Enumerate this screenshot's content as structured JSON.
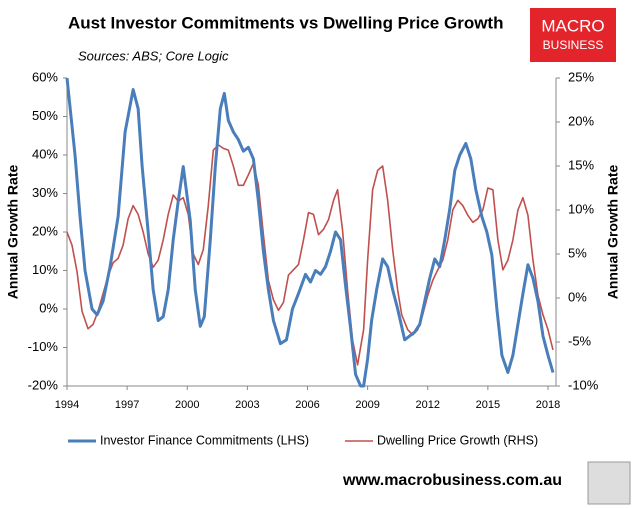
{
  "chart_data": {
    "type": "line",
    "title": "Aust Investor Commitments vs Dwelling Price Growth",
    "subtitle": "Sources: ABS; Core Logic",
    "ylabel": "Annual Growth Rate",
    "y2label": "Annual Growth Rate",
    "xlim": [
      1994,
      2018.4
    ],
    "xticks": [
      1994,
      1997,
      2000,
      2003,
      2006,
      2009,
      2012,
      2015,
      2018
    ],
    "ylim": [
      -20,
      60
    ],
    "yticks": [
      {
        "value": -20,
        "label": "-20%"
      },
      {
        "value": -10,
        "label": "-10%"
      },
      {
        "value": 0,
        "label": "0%"
      },
      {
        "value": 10,
        "label": "10%"
      },
      {
        "value": 20,
        "label": "20%"
      },
      {
        "value": 30,
        "label": "30%"
      },
      {
        "value": 40,
        "label": "40%"
      },
      {
        "value": 50,
        "label": "50%"
      },
      {
        "value": 60,
        "label": "60%"
      }
    ],
    "y2lim": [
      -10,
      25
    ],
    "y2ticks": [
      {
        "value": -10,
        "label": "-10%"
      },
      {
        "value": -5,
        "label": "-5%"
      },
      {
        "value": 0,
        "label": "0%"
      },
      {
        "value": 5,
        "label": "5%"
      },
      {
        "value": 10,
        "label": "10%"
      },
      {
        "value": 15,
        "label": "15%"
      },
      {
        "value": 20,
        "label": "20%"
      },
      {
        "value": 25,
        "label": "25%"
      }
    ],
    "grid": false,
    "legend": "bottom",
    "series": [
      {
        "name": "Investor Finance Commitments (LHS)",
        "color": "#4a7ebb",
        "axis": "y",
        "x": [
          1994.0,
          1994.4,
          1994.65,
          1994.9,
          1995.25,
          1995.5,
          1995.8,
          1996.15,
          1996.55,
          1996.9,
          1997.3,
          1997.55,
          1997.75,
          1998.05,
          1998.3,
          1998.55,
          1998.8,
          1999.05,
          1999.3,
          1999.55,
          1999.8,
          1999.95,
          2000.15,
          2000.4,
          2000.65,
          2000.85,
          2001.15,
          2001.4,
          2001.65,
          2001.85,
          2002.05,
          2002.3,
          2002.55,
          2002.8,
          2003.05,
          2003.3,
          2003.55,
          2003.8,
          2004.05,
          2004.3,
          2004.65,
          2004.95,
          2005.25,
          2005.55,
          2005.9,
          2006.15,
          2006.4,
          2006.65,
          2006.9,
          2007.15,
          2007.4,
          2007.65,
          2007.9,
          2008.15,
          2008.4,
          2008.65,
          2008.8,
          2009.0,
          2009.2,
          2009.45,
          2009.75,
          2010.0,
          2010.25,
          2010.5,
          2010.85,
          2011.1,
          2011.35,
          2011.6,
          2011.85,
          2012.1,
          2012.35,
          2012.6,
          2012.85,
          2013.1,
          2013.35,
          2013.6,
          2013.9,
          2014.15,
          2014.4,
          2014.7,
          2014.95,
          2015.2,
          2015.45,
          2015.7,
          2016.0,
          2016.25,
          2016.5,
          2016.75,
          2017.0,
          2017.25,
          2017.5,
          2017.75,
          2018.0,
          2018.25
        ],
        "values": [
          60,
          40,
          24,
          10,
          0,
          -1.5,
          2,
          11,
          24,
          46,
          57,
          52,
          37,
          20,
          5,
          -3,
          -2,
          5,
          18,
          28,
          37,
          31,
          23,
          5,
          -4.5,
          -2,
          18,
          37,
          52,
          56,
          49,
          46,
          44,
          41,
          42,
          39,
          28,
          15,
          5,
          -3,
          -9,
          -8,
          0,
          4,
          9,
          7,
          10,
          9,
          11,
          15,
          20,
          18,
          6,
          -5,
          -17,
          -20,
          -20,
          -13,
          -3,
          5,
          13,
          11,
          5,
          0,
          -8,
          -7,
          -6,
          -4,
          2,
          8,
          13,
          11,
          18,
          26,
          36,
          40,
          43,
          39,
          31,
          24,
          20,
          14,
          0,
          -12,
          -16.5,
          -12,
          -4,
          4,
          11.5,
          8,
          2,
          -7,
          -12,
          -16.5
        ]
      },
      {
        "name": "Dwelling Price Growth (RHS)",
        "color": "#c0504d",
        "axis": "y2",
        "x": [
          1994.0,
          1994.25,
          1994.5,
          1994.75,
          1995.05,
          1995.3,
          1995.55,
          1995.8,
          1996.05,
          1996.3,
          1996.55,
          1996.8,
          1997.05,
          1997.3,
          1997.55,
          1997.8,
          1998.05,
          1998.3,
          1998.55,
          1998.8,
          1999.05,
          1999.3,
          1999.55,
          1999.8,
          2000.05,
          2000.3,
          2000.55,
          2000.8,
          2001.05,
          2001.3,
          2001.55,
          2001.8,
          2002.05,
          2002.3,
          2002.55,
          2002.8,
          2003.05,
          2003.3,
          2003.55,
          2003.8,
          2004.05,
          2004.3,
          2004.55,
          2004.8,
          2005.05,
          2005.3,
          2005.55,
          2005.8,
          2006.05,
          2006.3,
          2006.55,
          2006.8,
          2007.05,
          2007.3,
          2007.5,
          2007.75,
          2008.0,
          2008.25,
          2008.5,
          2008.8,
          2009.0,
          2009.25,
          2009.5,
          2009.75,
          2010.0,
          2010.25,
          2010.5,
          2010.7,
          2011.0,
          2011.25,
          2011.5,
          2011.75,
          2012.0,
          2012.25,
          2012.5,
          2012.75,
          2013.0,
          2013.25,
          2013.5,
          2013.75,
          2014.0,
          2014.25,
          2014.5,
          2014.75,
          2015.0,
          2015.25,
          2015.5,
          2015.75,
          2016.0,
          2016.25,
          2016.5,
          2016.75,
          2017.0,
          2017.25,
          2017.5,
          2017.75,
          2018.0,
          2018.25
        ],
        "values": [
          7.5,
          6,
          3,
          -1.5,
          -3.5,
          -3,
          -1.5,
          0.5,
          2.5,
          4,
          4.5,
          6,
          9,
          10.5,
          9.5,
          7.5,
          5,
          3.5,
          4.3,
          6.6,
          9.5,
          11.7,
          11,
          11.4,
          9.5,
          5,
          3.8,
          5.5,
          10.5,
          16.8,
          17.4,
          17,
          16.8,
          15,
          12.8,
          12.8,
          14,
          15.3,
          12.8,
          7.2,
          2,
          -0.2,
          -1.4,
          -0.5,
          2.6,
          3.2,
          3.8,
          6.6,
          9.7,
          9.5,
          7.2,
          7.8,
          8.9,
          11.1,
          12.3,
          7.7,
          0.9,
          -4.8,
          -7.6,
          -3.6,
          4.3,
          12.3,
          14.5,
          15,
          11.1,
          5.5,
          0.9,
          -1.9,
          -3.6,
          -4.2,
          -3.6,
          -1.9,
          0.3,
          2,
          3.2,
          4.3,
          6.6,
          10,
          11.1,
          10.5,
          9.4,
          8.6,
          9,
          10,
          12.5,
          12.3,
          6.6,
          3.2,
          4.3,
          6.6,
          10,
          11.4,
          9.4,
          4.3,
          0.3,
          -1.9,
          -3.6,
          -5.9
        ]
      }
    ]
  },
  "logo": {
    "line1": "MACRO",
    "line2": "BUSINESS"
  },
  "footer": "www.macrobusiness.com.au"
}
